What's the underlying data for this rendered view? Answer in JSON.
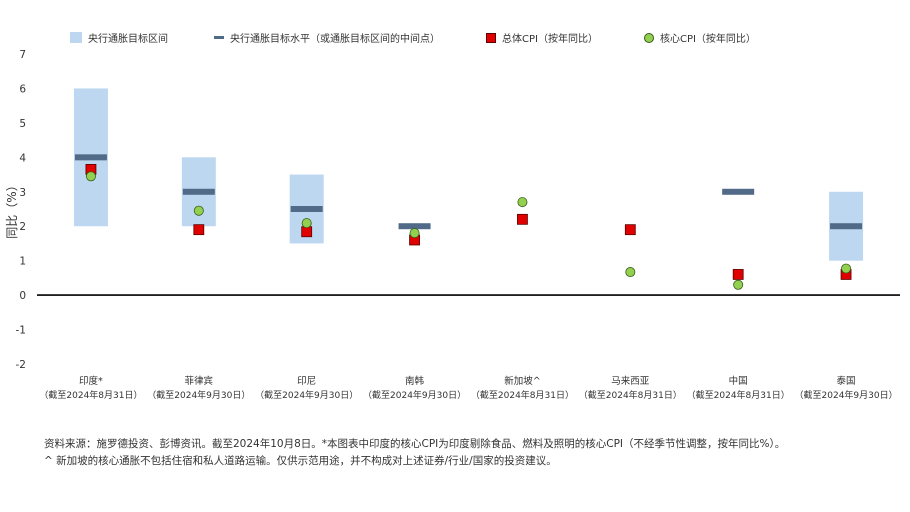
{
  "legend": {
    "band": "央行通胀目标区间",
    "midpoint": "央行通胀目标水平（或通胀目标区间的中间点）",
    "headline": "总体CPI（按年同比）",
    "core": "核心CPI（按年同比）"
  },
  "source": {
    "line1": "资料来源：施罗德投资、彭博资讯。截至2024年10月8日。*本图表中印度的核心CPI为印度剔除食品、燃料及照明的核心CPI（不经季节性调整，按年同比%）。",
    "line2": "^ 新加坡的核心通胀不包括住宿和私人道路运输。仅供示范用途，并不构成对上述证券/行业/国家的投资建议。"
  },
  "colors": {
    "band": "#bcd7ef",
    "target": "#506a87",
    "headline": "#e00000",
    "core": "#92d050",
    "zero_line": "#000000"
  },
  "chart_data": {
    "type": "scatter",
    "ylabel": "同比（%）",
    "ylim": [
      -2,
      7
    ],
    "yticks": [
      -2,
      -1,
      0,
      1,
      2,
      3,
      4,
      5,
      6,
      7
    ],
    "grid": false,
    "legend_position": "top",
    "categories": [
      {
        "name": "印度*",
        "date": "（截至2024年8月31日）",
        "band": [
          2,
          6
        ],
        "target": 4.0,
        "headline": 3.65,
        "core": 3.45
      },
      {
        "name": "菲律宾",
        "date": "（截至2024年9月30日）",
        "band": [
          2,
          4
        ],
        "target": 3.0,
        "headline": 1.9,
        "core": 2.45
      },
      {
        "name": "印尼",
        "date": "（截至2024年9月30日）",
        "band": [
          1.5,
          3.5
        ],
        "target": 2.5,
        "headline": 1.84,
        "core": 2.09
      },
      {
        "name": "南韩",
        "date": "（截至2024年9月30日）",
        "band": null,
        "target": 2.0,
        "headline": 1.6,
        "core": 1.8
      },
      {
        "name": "新加坡^",
        "date": "（截至2024年8月31日）",
        "band": null,
        "target": null,
        "headline": 2.2,
        "core": 2.7
      },
      {
        "name": "马来西亚",
        "date": "（截至2024年8月31日）",
        "band": null,
        "target": null,
        "headline": 1.9,
        "core": 0.67
      },
      {
        "name": "中国",
        "date": "（截至2024年8月31日）",
        "band": null,
        "target": 3.0,
        "headline": 0.6,
        "core": 0.3
      },
      {
        "name": "泰国",
        "date": "（截至2024年9月30日）",
        "band": [
          1,
          3
        ],
        "target": 2.0,
        "headline": 0.6,
        "core": 0.77
      }
    ]
  }
}
